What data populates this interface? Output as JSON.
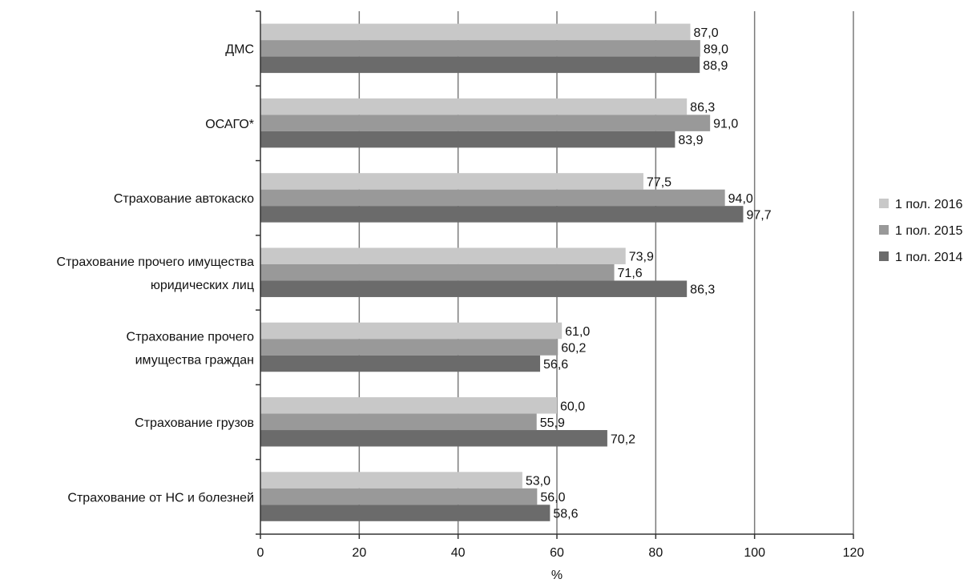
{
  "chart_data": {
    "type": "bar",
    "orientation": "horizontal",
    "categories": [
      [
        "ДМС"
      ],
      [
        "ОСАГО*"
      ],
      [
        "Страхование автокаско"
      ],
      [
        "Страхование прочего имущества",
        "юридических лиц"
      ],
      [
        "Страхование прочего",
        "имущества граждан"
      ],
      [
        "Страхование грузов"
      ],
      [
        "Страхование от НС и болезней"
      ]
    ],
    "series": [
      {
        "name": "1 пол. 2016",
        "color": "#c8c8c8",
        "values": [
          87.0,
          86.3,
          77.5,
          73.9,
          61.0,
          60.0,
          53.0
        ],
        "labels": [
          "87,0",
          "86,3",
          "77,5",
          "73,9",
          "61,0",
          "60,0",
          "53,0"
        ]
      },
      {
        "name": "1 пол. 2015",
        "color": "#999999",
        "values": [
          89.0,
          91.0,
          94.0,
          71.6,
          60.2,
          55.9,
          56.0
        ],
        "labels": [
          "89,0",
          "91,0",
          "94,0",
          "71,6",
          "60,2",
          "55,9",
          "56,0"
        ]
      },
      {
        "name": "1 пол. 2014",
        "color": "#6b6b6b",
        "values": [
          88.9,
          83.9,
          97.7,
          86.3,
          56.6,
          70.2,
          58.6
        ],
        "labels": [
          "88,9",
          "83,9",
          "97,7",
          "86,3",
          "56,6",
          "70,2",
          "58,6"
        ]
      }
    ],
    "xlim": [
      0,
      120
    ],
    "xticks": [
      0,
      20,
      40,
      60,
      80,
      100,
      120
    ],
    "xtick_labels": [
      "0",
      "20",
      "40",
      "60",
      "80",
      "100",
      "120"
    ],
    "xlabel": "%",
    "grid": "vertical",
    "legend_position": "right"
  }
}
